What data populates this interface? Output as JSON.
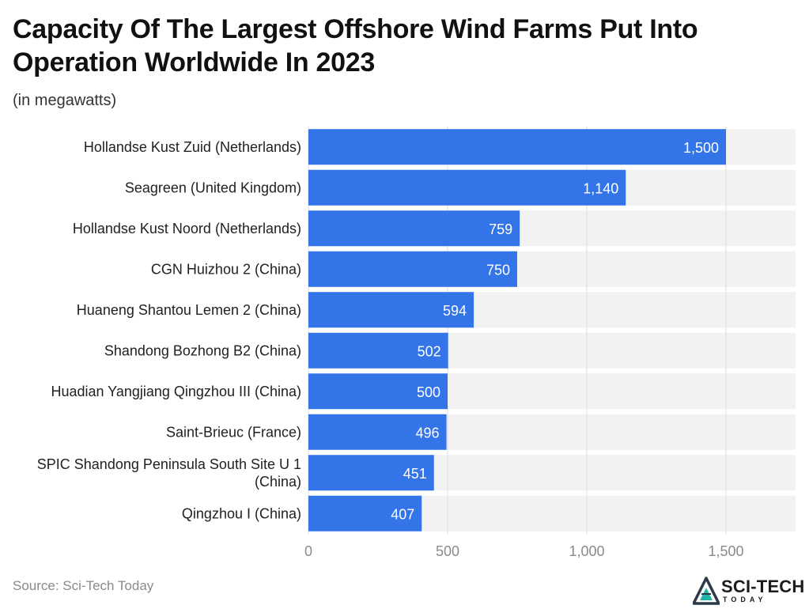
{
  "header": {
    "title": "Capacity Of The Largest Offshore Wind Farms Put Into Operation Worldwide In 2023",
    "subtitle": "(in megawatts)"
  },
  "footer": {
    "source": "Source: Sci-Tech Today",
    "logo_text": "SCI-TECH",
    "logo_sub": "TODAY",
    "logo_icon": "triangle-logo-icon"
  },
  "colors": {
    "bar": "#3374e8",
    "band": "#f2f2f2",
    "grid": "#dcdcdc",
    "label": "#212121",
    "tick": "#8a8a8a",
    "logo_dark": "#2b3a4a",
    "logo_teal": "#21b5a8"
  },
  "chart_data": {
    "type": "bar",
    "orientation": "horizontal",
    "categories": [
      "Hollandse Kust Zuid (Netherlands)",
      "Seagreen (United Kingdom)",
      "Hollandse Kust Noord (Netherlands)",
      "CGN Huizhou 2 (China)",
      "Huaneng Shantou Lemen 2 (China)",
      "Shandong Bozhong B2 (China)",
      "Huadian Yangjiang Qingzhou III (China)",
      "Saint-Brieuc (France)",
      "SPIC Shandong Peninsula South Site U 1 (China)",
      "Qingzhou I (China)"
    ],
    "values": [
      1500,
      1140,
      759,
      750,
      594,
      502,
      500,
      496,
      451,
      407
    ],
    "value_labels": [
      "1,500",
      "1,140",
      "759",
      "750",
      "594",
      "502",
      "500",
      "496",
      "451",
      "407"
    ],
    "xlim": [
      0,
      1750
    ],
    "xticks": [
      0,
      500,
      1000,
      1500
    ],
    "xtick_labels": [
      "0",
      "500",
      "1,000",
      "1,500"
    ],
    "title": "Capacity Of The Largest Offshore Wind Farms Put Into Operation Worldwide In 2023",
    "subtitle": "(in megawatts)",
    "xlabel": "",
    "ylabel": "",
    "grid": true,
    "legend": "none"
  }
}
